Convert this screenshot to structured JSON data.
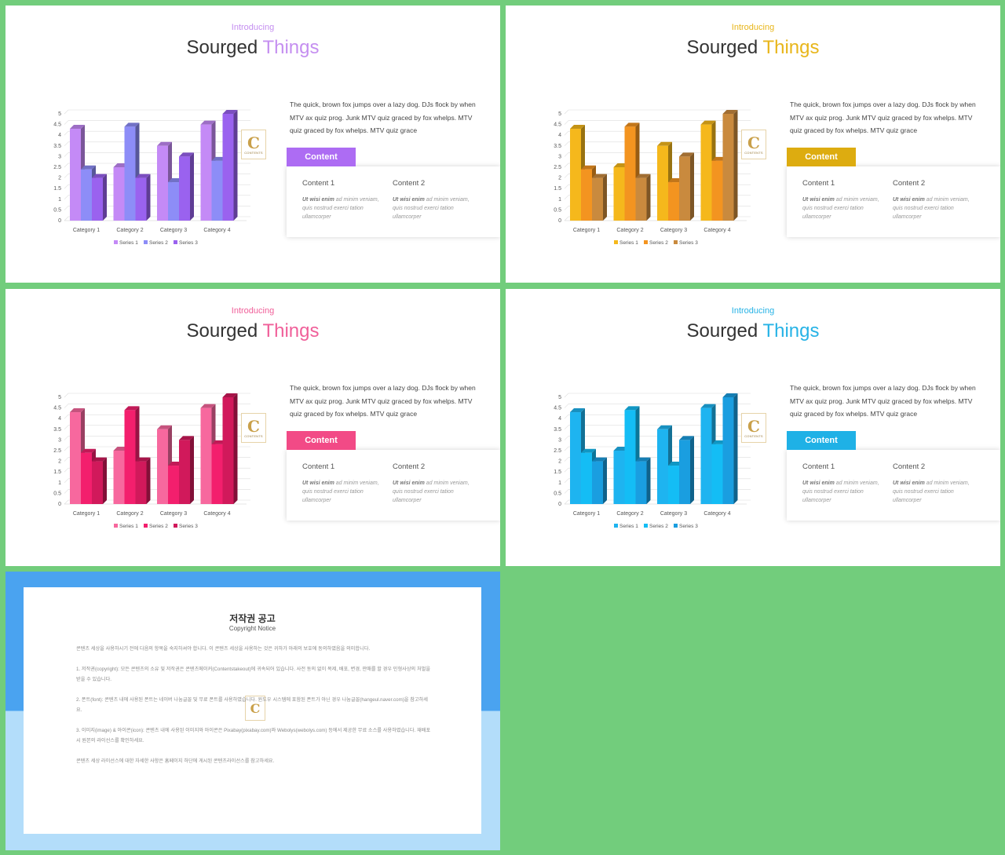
{
  "slides": [
    {
      "intro": "Introducing",
      "title_main": "Sourged",
      "title_accent": "Things",
      "accent": "#c58ff0",
      "series_colors": [
        "#c48af6",
        "#8d8df7",
        "#9a62ef"
      ],
      "description": "The quick, brown fox jumps over a lazy dog. DJs flock by when MTV ax quiz prog. Junk MTV quiz graced by fox whelps. MTV quiz graced by fox whelps. MTV quiz grace",
      "tab_label": "Content",
      "tab_color": "#ad6cf3",
      "content1_title": "Content 1",
      "content1_text_bold": "Ut wisi enim",
      "content1_text": " ad minim veniam, quis nostrud exerci tation ullamcorper",
      "content2_title": "Content 2",
      "content2_text_bold": "Ut wisi enim",
      "content2_text": " ad minim veniam, quis nostrud exerci tation ullamcorper"
    },
    {
      "intro": "Introducing",
      "title_main": "Sourged",
      "title_accent": "Things",
      "accent": "#e8b61b",
      "series_colors": [
        "#f5b81c",
        "#f39420",
        "#c98a3e"
      ],
      "description": "The quick, brown fox jumps over a lazy dog. DJs flock by when MTV ax quiz prog. Junk MTV quiz graced by fox whelps. MTV quiz graced by fox whelps. MTV quiz grace",
      "tab_label": "Content",
      "tab_color": "#ddac10",
      "content1_title": "Content 1",
      "content1_text_bold": "Ut wisi enim",
      "content1_text": " ad minim veniam, quis nostrud exerci tation ullamcorper",
      "content2_title": "Content 2",
      "content2_text_bold": "Ut wisi enim",
      "content2_text": " ad minim veniam, quis nostrud exerci tation ullamcorper"
    },
    {
      "intro": "Introducing",
      "title_main": "Sourged",
      "title_accent": "Things",
      "accent": "#f0609a",
      "series_colors": [
        "#f7689e",
        "#f31f6d",
        "#d1195b"
      ],
      "description": "The quick, brown fox jumps over a lazy dog. DJs flock by when MTV ax quiz prog. Junk MTV quiz graced by fox whelps. MTV quiz graced by fox whelps. MTV quiz grace",
      "tab_label": "Content",
      "tab_color": "#f24a86",
      "content1_title": "Content 1",
      "content1_text_bold": "Ut wisi enim",
      "content1_text": " ad minim veniam, quis nostrud exerci tation ullamcorper",
      "content2_title": "Content 2",
      "content2_text_bold": "Ut wisi enim",
      "content2_text": " ad minim veniam, quis nostrud exerci tation ullamcorper"
    },
    {
      "intro": "Introducing",
      "title_main": "Sourged",
      "title_accent": "Things",
      "accent": "#27b3e6",
      "series_colors": [
        "#1eb4f0",
        "#14bdf5",
        "#1a9ee0"
      ],
      "description": "The quick, brown fox jumps over a lazy dog. DJs flock by when MTV ax quiz prog. Junk MTV quiz graced by fox whelps. MTV quiz graced by fox whelps. MTV quiz grace",
      "tab_label": "Content",
      "tab_color": "#1fb1e6",
      "content1_title": "Content 1",
      "content1_text_bold": "Ut wisi enim",
      "content1_text": " ad minim veniam, quis nostrud exerci tation ullamcorper",
      "content2_title": "Content 2",
      "content2_text_bold": "Ut wisi enim",
      "content2_text": " ad minim veniam, quis nostrud exerci tation ullamcorper"
    }
  ],
  "chart_data": {
    "type": "bar",
    "categories": [
      "Category 1",
      "Category 2",
      "Category 3",
      "Category 4"
    ],
    "series": [
      {
        "name": "Series 1",
        "values": [
          4.3,
          2.5,
          3.5,
          4.5
        ]
      },
      {
        "name": "Series 2",
        "values": [
          2.4,
          4.4,
          1.8,
          2.8
        ]
      },
      {
        "name": "Series 3",
        "values": [
          2,
          2,
          3,
          5
        ]
      }
    ],
    "ylim": [
      0,
      5
    ],
    "yticks": [
      "0",
      "0.5",
      "1",
      "1.5",
      "2",
      "2.5",
      "3",
      "3.5",
      "4",
      "4.5",
      "5"
    ],
    "legend": "bottom",
    "grid": true
  },
  "logo": {
    "letter": "C",
    "text": "CONTENTS"
  },
  "notice": {
    "title": "저작권 공고",
    "subtitle": "Copyright Notice",
    "p0": "콘텐츠 세상을 사용하시기 전에 다음의 항목을 숙지하셔야 합니다. 이 콘텐츠 세상을 사용하는 것은 귀하가 아래의 보호에 동의하였음을 의미합니다.",
    "p1": "1. 저작권(copyright): 모든 콘텐츠의 소유 및 저작권은 콘텐츠메이커(Contentstakeout)에 귀속되어 있습니다. 사전 동의 없이 복제, 배포, 변경, 판매를 할 경우 민형사상의 처벌을 받을 수 있습니다.",
    "p2": "2. 폰트(font): 콘텐츠 내에 사용된 폰트는 네이버 나눔글꼴 및 무료 폰트를 사용하였습니다. 윈도우 시스템에 포함된 폰트가 아닌 경우 나눔글꼴(hangeul.naver.com)을 참고하세요.",
    "p3": "3. 이미지(image) & 아이콘(icon): 콘텐츠 내에 사용된 이미지와 아이콘은 Pixabay(pixabay.com)와 Webolys(webolys.com) 등에서 제공한 무료 소스를 사용하였습니다. 재배포 시 원본의 라이선스를 확인하세요.",
    "p4": "콘텐츠 세상 라이선스에 대한 자세한 사항은 홈페이지 하단에 게시된 콘텐츠라이선스를 참고하세요."
  }
}
